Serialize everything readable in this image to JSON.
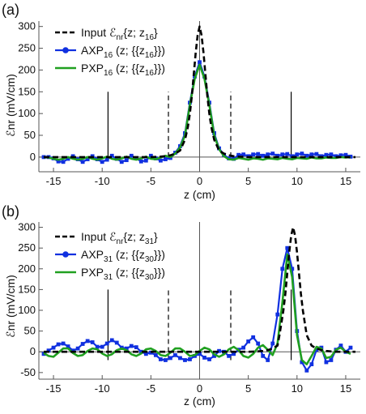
{
  "chart_data": [
    {
      "type": "line",
      "panel_label": "(a)",
      "xlabel": "z (cm)",
      "ylabel": "ℰnr (mV/cm)",
      "xlim": [
        -16.5,
        16.5
      ],
      "ylim": [
        -30,
        305
      ],
      "xticks": [
        -15,
        -10,
        -5,
        0,
        5,
        10,
        15
      ],
      "yticks": [
        0,
        50,
        100,
        150,
        200,
        250,
        300
      ],
      "grid": false,
      "legend_position": "top-left",
      "vlines_solid": [
        -9.4,
        9.4
      ],
      "vlines_dashed": [
        -3.2,
        3.2
      ],
      "vline_range": [
        0,
        150
      ],
      "series": [
        {
          "name": "Input ℰnr{z; z16}",
          "legend_parts": [
            "Input ℰ",
            "nr",
            "{z; z",
            "16",
            "}"
          ],
          "style": "dashed",
          "color": "#000000",
          "x": [
            -16,
            -14,
            -12,
            -10,
            -8,
            -6,
            -5,
            -4,
            -3.5,
            -3,
            -2.5,
            -2,
            -1.5,
            -1.2,
            -1,
            -0.8,
            -0.6,
            -0.4,
            -0.2,
            0,
            0.2,
            0.4,
            0.6,
            0.8,
            1,
            1.2,
            1.5,
            2,
            2.5,
            3,
            3.5,
            4,
            5,
            6,
            8,
            10,
            12,
            14,
            16
          ],
          "y": [
            0,
            0,
            0,
            0,
            0,
            0,
            0,
            1,
            2,
            4,
            8,
            15,
            40,
            70,
            100,
            140,
            190,
            240,
            280,
            300,
            280,
            240,
            190,
            140,
            100,
            70,
            40,
            15,
            8,
            4,
            2,
            1,
            0,
            0,
            0,
            0,
            0,
            0,
            0
          ]
        },
        {
          "name": "AXP16 (z; {{z16}})",
          "legend_parts": [
            "AXP",
            "16",
            " (z; {{z",
            "16",
            "}})"
          ],
          "style": "line-markers",
          "color": "#1030e0",
          "x": [
            -16,
            -15.5,
            -15,
            -14.5,
            -14,
            -13.5,
            -13,
            -12.5,
            -12,
            -11.5,
            -11,
            -10.5,
            -10,
            -9.5,
            -9,
            -8.5,
            -8,
            -7.5,
            -7,
            -6.5,
            -6,
            -5.5,
            -5,
            -4.5,
            -4,
            -3.5,
            -3,
            -2.5,
            -2,
            -1.5,
            -1,
            -0.5,
            0,
            0.5,
            1,
            1.5,
            2,
            2.5,
            3,
            3.5,
            4,
            4.5,
            5,
            5.5,
            6,
            6.5,
            7,
            7.5,
            8,
            8.5,
            9,
            9.5,
            10,
            10.5,
            11,
            11.5,
            12,
            12.5,
            13,
            13.5,
            14,
            14.5,
            15,
            15.5
          ],
          "y": [
            0,
            0,
            -3,
            -10,
            -11,
            -4,
            2,
            -5,
            -11,
            -5,
            2,
            -5,
            -11,
            -6,
            3,
            -4,
            -11,
            -7,
            3,
            -3,
            -10,
            -8,
            3,
            -3,
            -8,
            -5,
            -2,
            10,
            25,
            55,
            125,
            185,
            218,
            185,
            125,
            55,
            20,
            5,
            -3,
            -4,
            5,
            6,
            2,
            6,
            7,
            3,
            6,
            8,
            3,
            6,
            7,
            2,
            6,
            8,
            3,
            6,
            7,
            2,
            5,
            6,
            2,
            4,
            5,
            1
          ]
        },
        {
          "name": "PXP16 (z; {{z16}})",
          "legend_parts": [
            "PXP",
            "16",
            " (z; {{z",
            "16",
            "}})"
          ],
          "style": "solid",
          "color": "#20a020",
          "x": [
            -16,
            -15.5,
            -15,
            -14.5,
            -14,
            -13.5,
            -13,
            -12.5,
            -12,
            -11.5,
            -11,
            -10.5,
            -10,
            -9.5,
            -9,
            -8.5,
            -8,
            -7.5,
            -7,
            -6.5,
            -6,
            -5.5,
            -5,
            -4.5,
            -4,
            -3.5,
            -3,
            -2.5,
            -2,
            -1.5,
            -1,
            -0.5,
            0,
            0.5,
            1,
            1.5,
            2,
            2.5,
            3,
            3.5,
            4,
            4.5,
            5,
            5.5,
            6,
            6.5,
            7,
            7.5,
            8,
            8.5,
            9,
            9.5,
            10,
            10.5,
            11,
            11.5,
            12,
            12.5,
            13,
            13.5,
            14,
            14.5,
            15,
            15.5
          ],
          "y": [
            0,
            -1,
            -4,
            -6,
            -4,
            0,
            -4,
            -6,
            -4,
            0,
            -4,
            -6,
            -3,
            1,
            -4,
            -6,
            -3,
            1,
            -4,
            -6,
            -3,
            1,
            -4,
            -5,
            -1,
            3,
            0,
            8,
            22,
            50,
            120,
            180,
            212,
            180,
            120,
            50,
            18,
            2,
            -5,
            -6,
            -2,
            -4,
            -6,
            -3,
            -4,
            -6,
            -3,
            -4,
            -5,
            -2,
            -4,
            -5,
            -2,
            -3,
            -4,
            -1,
            -3,
            -3,
            -1,
            -2,
            -2,
            0,
            -1,
            0
          ]
        }
      ]
    },
    {
      "type": "line",
      "panel_label": "(b)",
      "xlabel": "z (cm)",
      "ylabel": "ℰnr (mV/cm)",
      "xlim": [
        -16.5,
        16.5
      ],
      "ylim": [
        -62,
        305
      ],
      "xticks": [
        -15,
        -10,
        -5,
        0,
        5,
        10,
        15
      ],
      "yticks": [
        -50,
        0,
        50,
        100,
        150,
        200,
        250,
        300
      ],
      "grid": false,
      "legend_position": "top-left",
      "vlines_solid": [
        -9.4,
        9.4
      ],
      "vlines_dashed": [
        -3.2,
        3.2
      ],
      "vline_range": [
        -20,
        150
      ],
      "series": [
        {
          "name": "Input ℰnr{z; z31}",
          "legend_parts": [
            "Input ℰ",
            "nr",
            "{z; z",
            "31",
            "}"
          ],
          "style": "dashed",
          "color": "#000000",
          "x": [
            -16,
            -12,
            -8,
            -4,
            0,
            2,
            4,
            5,
            6,
            6.5,
            7,
            7.5,
            8,
            8.2,
            8.4,
            8.6,
            8.8,
            9,
            9.2,
            9.4,
            9.6,
            9.8,
            10,
            10.2,
            10.4,
            10.6,
            10.8,
            11,
            11.5,
            12,
            12.5,
            13,
            14,
            16
          ],
          "y": [
            0,
            0,
            0,
            0,
            0,
            0,
            0,
            0,
            1,
            2,
            4,
            8,
            15,
            40,
            70,
            100,
            140,
            190,
            240,
            280,
            300,
            280,
            240,
            190,
            140,
            100,
            70,
            40,
            15,
            8,
            4,
            2,
            0,
            0
          ]
        },
        {
          "name": "AXP31 (z; {{z30}})",
          "legend_parts": [
            "AXP",
            "31",
            " (z; {{z",
            "30",
            "}})"
          ],
          "style": "line-markers",
          "color": "#1030e0",
          "x": [
            -16,
            -15.5,
            -15,
            -14.5,
            -14,
            -13.5,
            -13,
            -12.5,
            -12,
            -11.5,
            -11,
            -10.5,
            -10,
            -9.5,
            -9,
            -8.5,
            -8,
            -7.5,
            -7,
            -6.5,
            -6,
            -5.5,
            -5,
            -4.5,
            -4,
            -3.5,
            -3,
            -2.5,
            -2,
            -1.5,
            -1,
            -0.5,
            0,
            0.5,
            1,
            1.5,
            2,
            2.5,
            3,
            3.5,
            4,
            4.5,
            5,
            5.5,
            6,
            6.5,
            7,
            7.5,
            8,
            8.5,
            9,
            9.5,
            10,
            10.5,
            11,
            11.5,
            12,
            12.5,
            13,
            13.5,
            14,
            14.5,
            15,
            15.5
          ],
          "y": [
            -5,
            3,
            10,
            18,
            20,
            13,
            3,
            8,
            19,
            26,
            23,
            12,
            12,
            20,
            28,
            22,
            10,
            8,
            14,
            11,
            0,
            -5,
            -2,
            -8,
            -18,
            -20,
            -15,
            -8,
            -15,
            -20,
            -18,
            -10,
            -5,
            -14,
            -18,
            -10,
            2,
            0,
            -10,
            -5,
            5,
            10,
            25,
            35,
            20,
            -10,
            -20,
            20,
            90,
            200,
            250,
            200,
            50,
            -25,
            -45,
            -30,
            5,
            10,
            -25,
            -20,
            5,
            15,
            0,
            10
          ]
        },
        {
          "name": "PXP31 (z; {{z30}})",
          "legend_parts": [
            "PXP",
            "31",
            " (z; {{z",
            "30",
            "}})"
          ],
          "style": "solid",
          "color": "#20a020",
          "x": [
            -16,
            -15.5,
            -15,
            -14.5,
            -14,
            -13.5,
            -13,
            -12.5,
            -12,
            -11.5,
            -11,
            -10.5,
            -10,
            -9.5,
            -9,
            -8.5,
            -8,
            -7.5,
            -7,
            -6.5,
            -6,
            -5.5,
            -5,
            -4.5,
            -4,
            -3.5,
            -3,
            -2.5,
            -2,
            -1.5,
            -1,
            -0.5,
            0,
            0.5,
            1,
            1.5,
            2,
            2.5,
            3,
            3.5,
            4,
            4.5,
            5,
            5.5,
            6,
            6.5,
            7,
            7.5,
            8,
            8.5,
            9,
            9.5,
            10,
            10.5,
            11,
            11.5,
            12,
            12.5,
            13,
            13.5,
            14,
            14.5,
            15,
            15.5
          ],
          "y": [
            -3,
            -10,
            -12,
            -2,
            8,
            8,
            -3,
            -10,
            -8,
            2,
            8,
            6,
            -4,
            -10,
            -6,
            4,
            8,
            4,
            -6,
            -10,
            -4,
            6,
            8,
            2,
            -8,
            -10,
            -2,
            8,
            8,
            0,
            -10,
            -8,
            2,
            10,
            6,
            -6,
            -12,
            -6,
            6,
            12,
            4,
            -10,
            -14,
            -5,
            10,
            16,
            5,
            -8,
            20,
            120,
            235,
            180,
            40,
            -20,
            -30,
            -10,
            12,
            8,
            -15,
            -12,
            5,
            10,
            0,
            -5
          ]
        }
      ]
    }
  ]
}
